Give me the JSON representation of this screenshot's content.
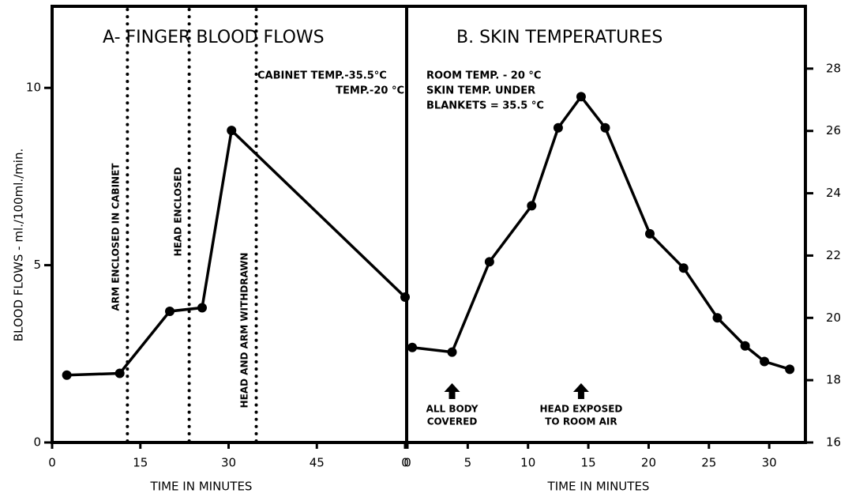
{
  "chart_data": [
    {
      "type": "line",
      "title": "A- FINGER BLOOD FLOWS",
      "y_label": "BLOOD FLOWS - ml./100ml./min.",
      "x_label": "TIME IN MINUTES",
      "x": [
        2.5,
        11.5,
        20,
        25.5,
        30.5,
        60
      ],
      "values": [
        1.9,
        1.95,
        3.7,
        3.8,
        8.8,
        4.1
      ],
      "color": "#000000",
      "xlim": [
        0,
        60
      ],
      "xticks": [
        0,
        15,
        30,
        45,
        {
          "value": 60,
          "label": "0"
        }
      ],
      "ylim": [
        0,
        12.3
      ],
      "yticks": [
        0,
        5,
        10
      ],
      "events": [
        {
          "x": 12.8,
          "label": "ARM ENCLOSED IN CABINET"
        },
        {
          "x": 23.3,
          "label": "HEAD ENCLOSED"
        },
        {
          "x": 34.7,
          "label": "HEAD AND ARM WITHDRAWN"
        }
      ],
      "annotations": [
        "CABINET TEMP.-35.5°C",
        "TEMP.-20 °C"
      ]
    },
    {
      "type": "line",
      "title": "B.  SKIN TEMPERATURES",
      "x_label": "TIME IN MINUTES",
      "x": [
        0.4,
        3.7,
        6.8,
        10.3,
        12.5,
        14.4,
        16.4,
        20.1,
        22.9,
        25.7,
        28.0,
        29.6,
        31.7
      ],
      "values": [
        19.05,
        18.9,
        21.8,
        23.6,
        26.1,
        27.1,
        26.1,
        22.7,
        21.6,
        20.0,
        19.1,
        18.6,
        18.35
      ],
      "color": "#000000",
      "xlim": [
        0,
        33
      ],
      "xticks": [
        0,
        5,
        10,
        15,
        20,
        25,
        30
      ],
      "ylim": [
        16,
        30
      ],
      "yticks": [
        16,
        18,
        20,
        22,
        24,
        26,
        28
      ],
      "arrows": [
        {
          "x": 3.7,
          "label": [
            "ALL BODY",
            "COVERED"
          ]
        },
        {
          "x": 14.4,
          "label": [
            "HEAD EXPOSED",
            "TO ROOM AIR"
          ]
        }
      ],
      "annotations": [
        "ROOM TEMP. - 20 °C",
        "SKIN TEMP. UNDER",
        "BLANKETS = 35.5 °C"
      ]
    }
  ]
}
